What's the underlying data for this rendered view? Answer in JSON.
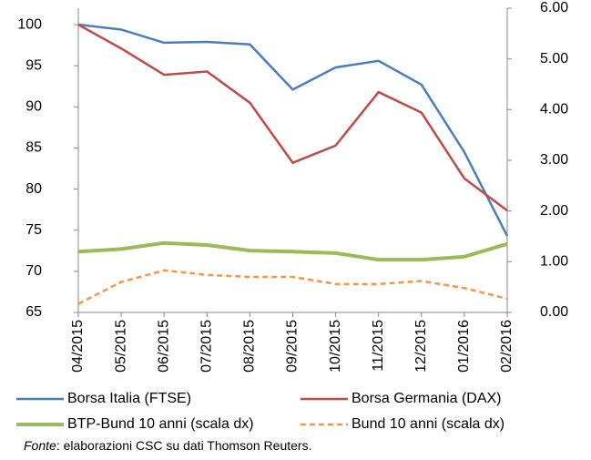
{
  "chart_data": {
    "type": "line",
    "categories": [
      "04/2015",
      "05/2015",
      "06/2015",
      "07/2015",
      "08/2015",
      "09/2015",
      "10/2015",
      "11/2015",
      "12/2015",
      "01/2016",
      "02/2016"
    ],
    "series": [
      {
        "name": "Borsa Italia (FTSE)",
        "color": "#4a7ebb",
        "values": [
          100,
          99.4,
          97.8,
          97.9,
          97.6,
          92.1,
          94.8,
          95.6,
          92.7,
          84.5,
          74.3
        ]
      },
      {
        "name": "Borsa Germania (DAX)",
        "color": "#be4b48",
        "values": [
          100,
          97.1,
          93.9,
          94.3,
          90.5,
          83.2,
          85.3,
          91.8,
          89.3,
          81.3,
          77.4
        ]
      },
      {
        "name": "BTP-Bund 10 anni (scala dx)",
        "color": "#9bbb59",
        "axis": "y2",
        "values": [
          1.2,
          1.25,
          1.37,
          1.33,
          1.22,
          1.2,
          1.17,
          1.04,
          1.04,
          1.1,
          1.35
        ]
      },
      {
        "name": "Bund 10 anni (scala dx)",
        "color": "#f79646",
        "axis": "y2",
        "dashed": true,
        "values": [
          0.17,
          0.6,
          0.83,
          0.74,
          0.7,
          0.7,
          0.56,
          0.56,
          0.62,
          0.48,
          0.27
        ]
      }
    ],
    "ylim": [
      65,
      102
    ],
    "yticks": [
      65,
      70,
      75,
      80,
      85,
      90,
      95,
      100
    ],
    "y2lim": [
      0,
      6
    ],
    "y2ticks": [
      {
        "value": 0,
        "label": "0.00"
      },
      {
        "value": 1,
        "label": "1.00"
      },
      {
        "value": 2,
        "label": "2.00"
      },
      {
        "value": 3,
        "label": "3.00"
      },
      {
        "value": 4,
        "label": "4.00"
      },
      {
        "value": 5,
        "label": "5.00"
      },
      {
        "value": 6,
        "label": "6.00"
      }
    ],
    "legend": "bottom",
    "source_label": "Fonte",
    "source_text": ": elaborazioni CSC su dati Thomson Reuters."
  }
}
